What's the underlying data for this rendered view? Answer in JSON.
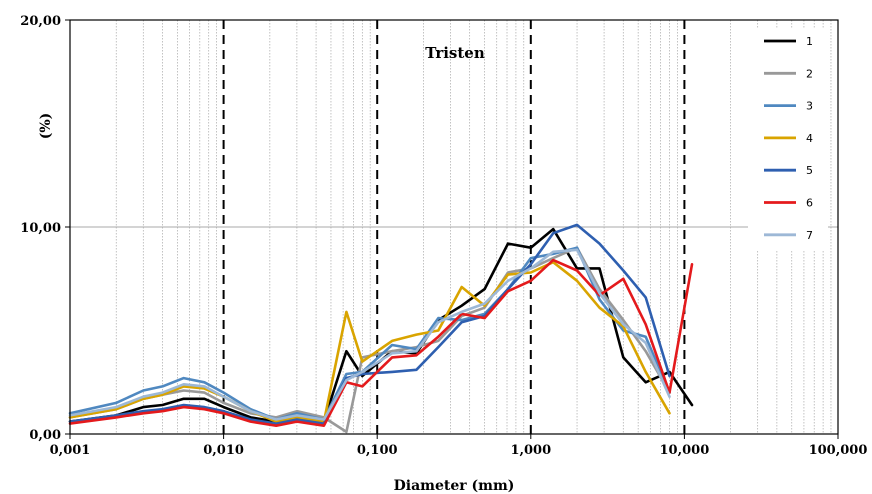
{
  "chart_data": {
    "type": "line",
    "title": "Tristen",
    "xlabel": "Diameter (mm)",
    "ylabel": "(%)",
    "x_scale": "log",
    "xlim": [
      0.001,
      100
    ],
    "ylim": [
      0,
      20
    ],
    "x_ticks": [
      "0,001",
      "0,010",
      "0,100",
      "1,000",
      "10,000",
      "100,000"
    ],
    "y_ticks": [
      "0,00",
      "10,00",
      "20,00"
    ],
    "grid": "minor vertical dotted, major horizontal",
    "dashed_verticals_at": [
      0.01,
      0.1,
      1,
      10
    ],
    "legend_position": "top-right",
    "series": [
      {
        "name": "1",
        "color": "#000000",
        "x": [
          0.001,
          0.002,
          0.003,
          0.004,
          0.0055,
          0.0075,
          0.01,
          0.015,
          0.022,
          0.03,
          0.045,
          0.063,
          0.08,
          0.125,
          0.18,
          0.25,
          0.355,
          0.5,
          0.71,
          1.0,
          1.4,
          2.0,
          2.8,
          4.0,
          5.6,
          8.0,
          11.2
        ],
        "y": [
          0.6,
          0.9,
          1.3,
          1.4,
          1.7,
          1.7,
          1.3,
          0.8,
          0.6,
          0.8,
          0.6,
          4.0,
          2.8,
          4.0,
          3.9,
          5.5,
          6.2,
          7.0,
          9.2,
          9.0,
          9.9,
          8.0,
          8.0,
          3.7,
          2.5,
          3.0,
          1.4
        ]
      },
      {
        "name": "2",
        "color": "#999999",
        "x": [
          0.001,
          0.002,
          0.003,
          0.004,
          0.0055,
          0.0075,
          0.01,
          0.015,
          0.022,
          0.03,
          0.045,
          0.063,
          0.08,
          0.125,
          0.18,
          0.25,
          0.355,
          0.5,
          0.71,
          1.0,
          1.4,
          2.0,
          2.8,
          4.0,
          5.6,
          8.0
        ],
        "y": [
          0.8,
          1.2,
          1.7,
          1.9,
          2.1,
          2.0,
          1.5,
          1.0,
          0.8,
          1.1,
          0.8,
          0.1,
          3.7,
          4.0,
          4.2,
          4.5,
          5.7,
          6.1,
          7.8,
          8.0,
          8.5,
          9.0,
          7.0,
          5.5,
          4.0,
          2.0
        ]
      },
      {
        "name": "3",
        "color": "#4f88c0",
        "x": [
          0.001,
          0.002,
          0.003,
          0.004,
          0.0055,
          0.0075,
          0.01,
          0.015,
          0.022,
          0.03,
          0.045,
          0.063,
          0.08,
          0.125,
          0.18,
          0.25,
          0.355,
          0.5,
          0.71,
          1.0,
          1.4,
          2.0,
          2.8,
          4.0,
          5.6,
          8.0
        ],
        "y": [
          1.0,
          1.5,
          2.1,
          2.3,
          2.7,
          2.5,
          2.0,
          1.2,
          0.7,
          1.0,
          0.7,
          2.9,
          3.0,
          4.3,
          4.1,
          5.6,
          5.5,
          5.8,
          7.0,
          8.5,
          8.7,
          9.0,
          6.5,
          5.0,
          4.7,
          2.0
        ]
      },
      {
        "name": "4",
        "color": "#d9a400",
        "x": [
          0.001,
          0.002,
          0.003,
          0.004,
          0.0055,
          0.0075,
          0.01,
          0.015,
          0.022,
          0.03,
          0.045,
          0.063,
          0.08,
          0.125,
          0.18,
          0.25,
          0.355,
          0.5,
          0.71,
          1.0,
          1.4,
          2.0,
          2.8,
          4.0,
          5.6,
          8.0
        ],
        "y": [
          0.8,
          1.2,
          1.7,
          1.9,
          2.3,
          2.2,
          1.8,
          1.1,
          0.6,
          0.8,
          0.6,
          5.9,
          3.5,
          4.5,
          4.8,
          5.0,
          7.1,
          6.2,
          7.7,
          7.8,
          8.3,
          7.4,
          6.1,
          5.2,
          3.0,
          1.0
        ]
      },
      {
        "name": "5",
        "color": "#2e5fb0",
        "x": [
          0.001,
          0.002,
          0.003,
          0.004,
          0.0055,
          0.0075,
          0.01,
          0.015,
          0.022,
          0.03,
          0.045,
          0.063,
          0.08,
          0.125,
          0.18,
          0.25,
          0.355,
          0.5,
          0.71,
          1.0,
          1.4,
          2.0,
          2.8,
          4.0,
          5.6,
          8.0
        ],
        "y": [
          0.6,
          0.9,
          1.1,
          1.2,
          1.4,
          1.3,
          1.1,
          0.7,
          0.5,
          0.7,
          0.5,
          2.7,
          2.9,
          3.0,
          3.1,
          4.2,
          5.4,
          5.7,
          7.0,
          8.2,
          9.7,
          10.1,
          9.2,
          7.9,
          6.6,
          2.8
        ]
      },
      {
        "name": "6",
        "color": "#e41a1c",
        "x": [
          0.001,
          0.002,
          0.003,
          0.004,
          0.0055,
          0.0075,
          0.01,
          0.015,
          0.022,
          0.03,
          0.045,
          0.063,
          0.08,
          0.125,
          0.18,
          0.25,
          0.355,
          0.5,
          0.71,
          1.0,
          1.4,
          2.0,
          2.8,
          4.0,
          5.6,
          8.0,
          11.2
        ],
        "y": [
          0.5,
          0.8,
          1.0,
          1.1,
          1.3,
          1.2,
          1.0,
          0.6,
          0.4,
          0.6,
          0.4,
          2.5,
          2.3,
          3.7,
          3.8,
          4.7,
          5.8,
          5.6,
          6.9,
          7.4,
          8.4,
          7.9,
          6.7,
          7.5,
          5.3,
          2.0,
          8.2
        ]
      },
      {
        "name": "7",
        "color": "#9db8d6",
        "x": [
          0.001,
          0.002,
          0.003,
          0.004,
          0.0055,
          0.0075,
          0.01,
          0.015,
          0.022,
          0.03,
          0.045,
          0.063,
          0.08,
          0.125,
          0.18,
          0.25,
          0.355,
          0.5,
          0.71,
          1.0,
          1.4,
          2.0,
          2.8,
          4.0,
          5.6,
          8.0
        ],
        "y": [
          0.9,
          1.3,
          1.8,
          2.0,
          2.4,
          2.3,
          1.8,
          1.1,
          0.7,
          0.9,
          0.7,
          2.6,
          3.0,
          3.9,
          4.0,
          5.4,
          5.9,
          6.3,
          7.4,
          8.0,
          8.8,
          8.9,
          6.8,
          5.3,
          4.4,
          1.8
        ]
      }
    ]
  }
}
